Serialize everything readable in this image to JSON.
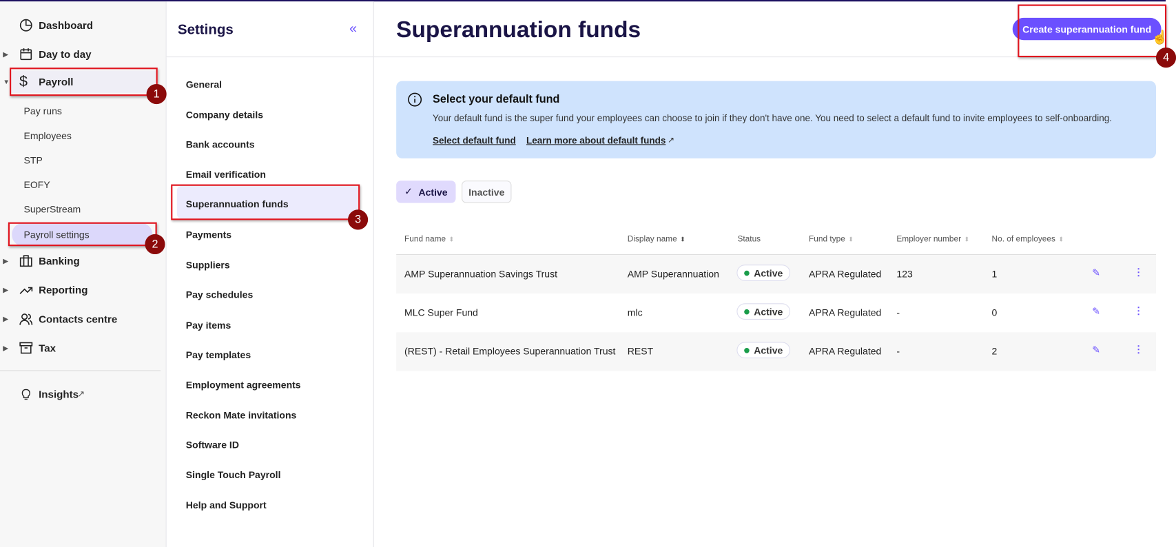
{
  "sidebar": {
    "items": [
      {
        "label": "Dashboard",
        "icon": "pie-chart-icon"
      },
      {
        "label": "Day to day",
        "icon": "calendar-icon"
      },
      {
        "label": "Payroll",
        "icon": "dollar-icon"
      },
      {
        "label": "Banking",
        "icon": "briefcase-icon"
      },
      {
        "label": "Reporting",
        "icon": "trend-icon"
      },
      {
        "label": "Contacts centre",
        "icon": "people-icon"
      },
      {
        "label": "Tax",
        "icon": "archive-icon"
      }
    ],
    "payroll_sub": [
      "Pay runs",
      "Employees",
      "STP",
      "EOFY",
      "SuperStream",
      "Payroll settings"
    ],
    "insights": "Insights"
  },
  "settings": {
    "title": "Settings",
    "collapse": "«",
    "items": [
      "General",
      "Company details",
      "Bank accounts",
      "Email verification",
      "Superannuation funds",
      "Payments",
      "Suppliers",
      "Pay schedules",
      "Pay items",
      "Pay templates",
      "Employment agreements",
      "Reckon Mate invitations",
      "Software ID",
      "Single Touch Payroll",
      "Help and Support"
    ]
  },
  "main": {
    "title": "Superannuation funds",
    "create_button": "Create superannuation fund",
    "info": {
      "title": "Select your default fund",
      "body": "Your default fund is the super fund your employees can choose to join if they don't have one. You need to select a default fund to invite employees to self-onboarding.",
      "link1": "Select default fund",
      "link2": "Learn more about default funds"
    },
    "filters": {
      "active": "Active",
      "inactive": "Inactive"
    },
    "columns": [
      "Fund name",
      "Display name",
      "Status",
      "Fund type",
      "Employer number",
      "No. of employees"
    ],
    "rows": [
      {
        "fund": "AMP Superannuation Savings Trust",
        "display": "AMP Superannuation",
        "status": "Active",
        "type": "APRA Regulated",
        "employer": "123",
        "employees": "1"
      },
      {
        "fund": "MLC Super Fund",
        "display": "mlc",
        "status": "Active",
        "type": "APRA Regulated",
        "employer": "-",
        "employees": "0"
      },
      {
        "fund": "(REST) - Retail Employees Superannuation Trust",
        "display": "REST",
        "status": "Active",
        "type": "APRA Regulated",
        "employer": "-",
        "employees": "2"
      }
    ]
  },
  "annotations": [
    "1",
    "2",
    "3",
    "4"
  ],
  "colors": {
    "accent": "#6b50ff",
    "title": "#1a1446",
    "info_bg": "#cfe3fd",
    "status_active": "#1a9d4a",
    "annotation": "#e0141e"
  }
}
